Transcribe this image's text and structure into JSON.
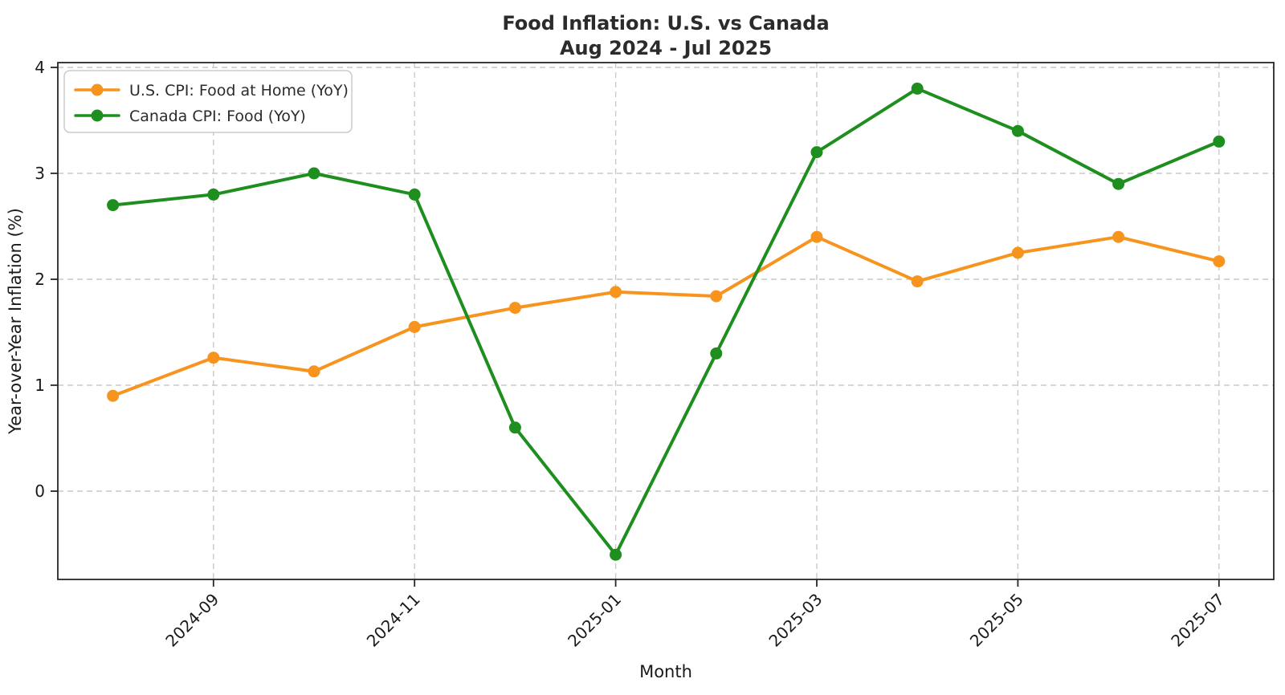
{
  "title": {
    "line1": "Food Inflation: U.S. vs Canada",
    "line2": "Aug 2024 - Jul 2025"
  },
  "axes": {
    "x_label": "Month",
    "y_label": "Year-over-Year Inflation (%)",
    "x_tick_labels": [
      "2024-09",
      "2024-11",
      "2025-01",
      "2025-03",
      "2025-05",
      "2025-07"
    ],
    "x_tick_indices": [
      1,
      3,
      5,
      7,
      9,
      11
    ],
    "y_ticks": [
      0,
      1,
      2,
      3,
      4
    ],
    "y_tick_labels": [
      "0",
      "1",
      "2",
      "3",
      "4"
    ]
  },
  "legend": {
    "items": [
      {
        "label": "U.S. CPI: Food at Home (YoY)",
        "color": "#f7941e"
      },
      {
        "label": "Canada CPI: Food (YoY)",
        "color": "#1e8f1e"
      }
    ]
  },
  "chart_data": {
    "type": "line",
    "title": "Food Inflation: U.S. vs Canada — Aug 2024 - Jul 2025",
    "xlabel": "Month",
    "ylabel": "Year-over-Year Inflation (%)",
    "x": [
      "2024-08",
      "2024-09",
      "2024-10",
      "2024-11",
      "2024-12",
      "2025-01",
      "2025-02",
      "2025-03",
      "2025-04",
      "2025-05",
      "2025-06",
      "2025-07"
    ],
    "series": [
      {
        "name": "U.S. CPI: Food at Home (YoY)",
        "color": "#f7941e",
        "marker": "o",
        "values": [
          0.9,
          1.26,
          1.13,
          1.55,
          1.73,
          1.88,
          1.84,
          2.4,
          1.98,
          2.25,
          2.4,
          2.17
        ]
      },
      {
        "name": "Canada CPI: Food (YoY)",
        "color": "#1e8f1e",
        "marker": "o",
        "values": [
          2.7,
          2.8,
          3.0,
          2.8,
          0.6,
          -0.6,
          1.3,
          3.2,
          3.8,
          3.4,
          2.9,
          3.3
        ]
      }
    ],
    "ylim": [
      -0.83,
      4.05
    ],
    "grid": true,
    "grid_style": "dashed",
    "legend_position": "upper left",
    "x_ticks_shown": [
      "2024-09",
      "2024-11",
      "2025-01",
      "2025-03",
      "2025-05",
      "2025-07"
    ],
    "x_tick_rotation": 45
  }
}
